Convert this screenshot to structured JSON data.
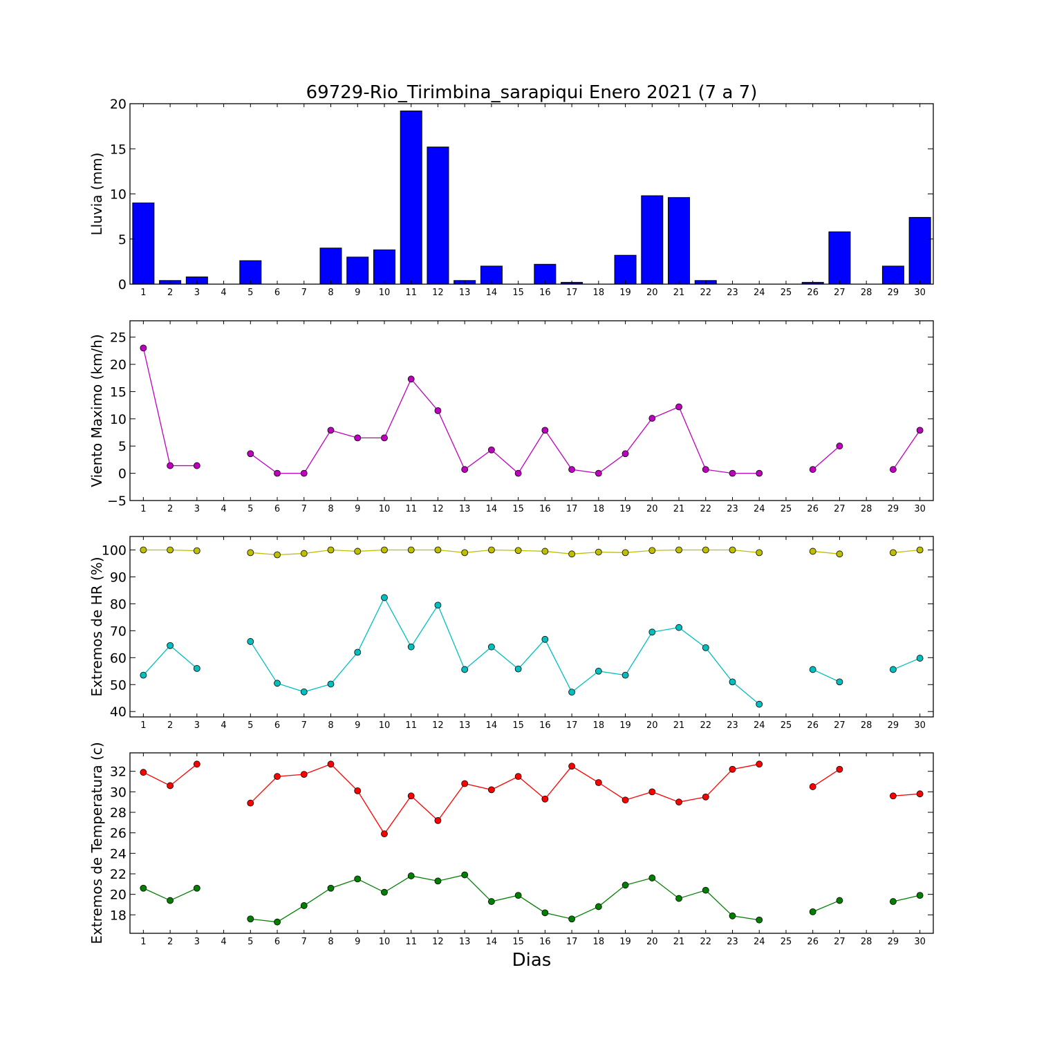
{
  "title": "69729-Rio_Tirimbina_sarapiqui Enero 2021  (7 a 7)",
  "xlabel": "Dias",
  "chart_data": [
    {
      "type": "bar",
      "ylabel": "Lluvia (mm)",
      "ylim": [
        0,
        20
      ],
      "yticks": [
        0,
        5,
        10,
        15,
        20
      ],
      "xlim": [
        0.5,
        30.5
      ],
      "x": [
        1,
        2,
        3,
        4,
        5,
        6,
        7,
        8,
        9,
        10,
        11,
        12,
        13,
        14,
        15,
        16,
        17,
        18,
        19,
        20,
        21,
        22,
        23,
        24,
        25,
        26,
        27,
        28,
        29,
        30
      ],
      "color": "#0000ff",
      "values": [
        9.0,
        0.4,
        0.8,
        0.0,
        2.6,
        0.0,
        0.0,
        4.0,
        3.0,
        3.8,
        19.2,
        15.2,
        0.4,
        2.0,
        0.0,
        2.2,
        0.2,
        0.0,
        3.2,
        9.8,
        9.6,
        0.4,
        0.0,
        0.0,
        0.0,
        0.2,
        5.8,
        0.0,
        2.0,
        7.4
      ]
    },
    {
      "type": "line",
      "ylabel": "Viento Maximo (km/h)",
      "ylim": [
        -5,
        28
      ],
      "yticks": [
        -5,
        0,
        5,
        10,
        15,
        20,
        25
      ],
      "xlim": [
        0.5,
        30.5
      ],
      "series": [
        {
          "color": "#bf00bf",
          "values": [
            23.0,
            1.4,
            1.4,
            null,
            3.6,
            0.0,
            0.0,
            7.9,
            6.5,
            6.5,
            17.3,
            11.5,
            0.7,
            4.3,
            0.0,
            7.9,
            0.7,
            0.0,
            3.6,
            10.1,
            12.2,
            0.7,
            0.0,
            0.0,
            null,
            0.7,
            5.0,
            null,
            0.7,
            7.9
          ]
        }
      ]
    },
    {
      "type": "line",
      "ylabel": "Extremos de HR (%)",
      "ylim": [
        38,
        105
      ],
      "yticks": [
        40,
        50,
        60,
        70,
        80,
        90,
        100
      ],
      "xlim": [
        0.5,
        30.5
      ],
      "series": [
        {
          "color": "#bfbf00",
          "values": [
            100,
            100,
            99.7,
            null,
            99,
            98.2,
            98.7,
            100,
            99.5,
            100,
            100,
            100,
            99,
            100,
            99.8,
            99.5,
            98.5,
            99.2,
            99,
            99.8,
            100,
            100,
            100,
            99,
            null,
            99.5,
            98.5,
            null,
            99,
            100
          ]
        },
        {
          "color": "#00bfbf",
          "values": [
            53.5,
            64.5,
            56,
            null,
            66,
            50.5,
            47.3,
            50.2,
            62,
            82.3,
            64,
            79.5,
            55.6,
            64,
            55.8,
            66.8,
            47.2,
            55,
            53.5,
            69.5,
            71.2,
            63.7,
            51,
            42.7,
            null,
            55.6,
            51,
            null,
            55.6,
            59.8
          ]
        }
      ]
    },
    {
      "type": "line",
      "ylabel": "Extremos de Temperatura (c)",
      "ylim": [
        16.2,
        33.8
      ],
      "yticks": [
        18,
        20,
        22,
        24,
        26,
        28,
        30,
        32
      ],
      "xlim": [
        0.5,
        30.5
      ],
      "series": [
        {
          "color": "#ff0000",
          "values": [
            31.9,
            30.6,
            32.7,
            null,
            28.9,
            31.5,
            31.7,
            32.7,
            30.1,
            25.9,
            29.6,
            27.2,
            30.8,
            30.2,
            31.5,
            29.3,
            32.5,
            30.9,
            29.2,
            30,
            29,
            29.5,
            32.2,
            32.7,
            null,
            30.5,
            32.2,
            null,
            29.6,
            29.8
          ]
        },
        {
          "color": "#007f00",
          "values": [
            20.6,
            19.4,
            20.6,
            null,
            17.6,
            17.3,
            18.9,
            20.6,
            21.5,
            20.2,
            21.8,
            21.3,
            21.9,
            19.3,
            19.9,
            18.2,
            17.6,
            18.8,
            20.9,
            21.6,
            19.6,
            20.4,
            17.9,
            17.5,
            null,
            18.3,
            19.4,
            null,
            19.3,
            19.9
          ]
        }
      ]
    }
  ]
}
